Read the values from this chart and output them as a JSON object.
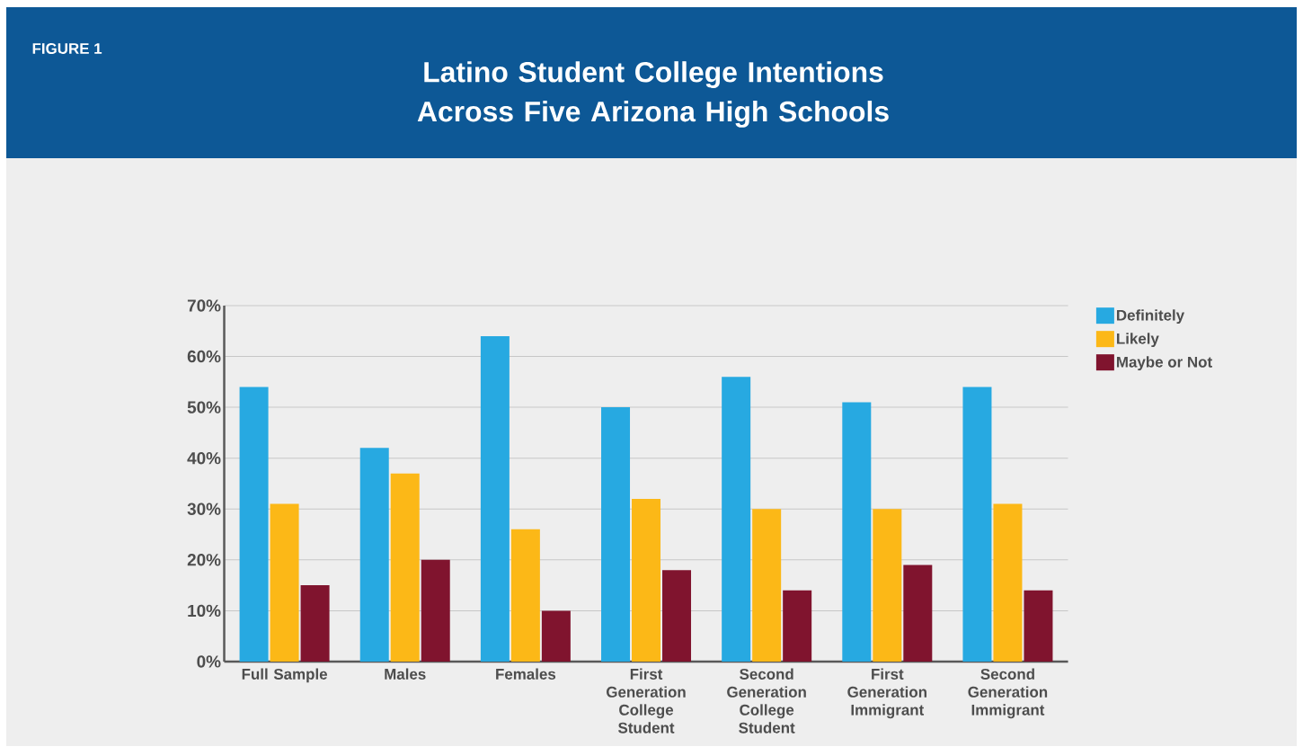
{
  "chart_data": {
    "type": "bar",
    "title": "Latino Student College Intentions Across Five Arizona High Schools",
    "annotations": [
      "FIGURE 1"
    ],
    "categories": [
      "Full Sample",
      "Males",
      "Females",
      "First Generation College Student",
      "Second Generation College Student",
      "First Generation Immigrant",
      "Second Generation Immigrant"
    ],
    "series": [
      {
        "name": "Definitely",
        "color": "#27a9e1",
        "values": [
          54,
          42,
          64,
          50,
          56,
          51,
          54
        ]
      },
      {
        "name": "Likely",
        "color": "#fcb817",
        "values": [
          31,
          37,
          26,
          32,
          30,
          30,
          31
        ]
      },
      {
        "name": "Maybe or Not",
        "color": "#80142e",
        "values": [
          15,
          20,
          10,
          18,
          14,
          19,
          14
        ]
      }
    ],
    "ylim": [
      0,
      70
    ],
    "yticks": [
      {
        "value": 0,
        "label": "0%"
      },
      {
        "value": 10,
        "label": "10%"
      },
      {
        "value": 20,
        "label": "20%"
      },
      {
        "value": 30,
        "label": "30%"
      },
      {
        "value": 40,
        "label": "40%"
      },
      {
        "value": 50,
        "label": "50%"
      },
      {
        "value": 60,
        "label": "60%"
      },
      {
        "value": 70,
        "label": "70%"
      }
    ],
    "grid": "y",
    "legend": "top right"
  }
}
